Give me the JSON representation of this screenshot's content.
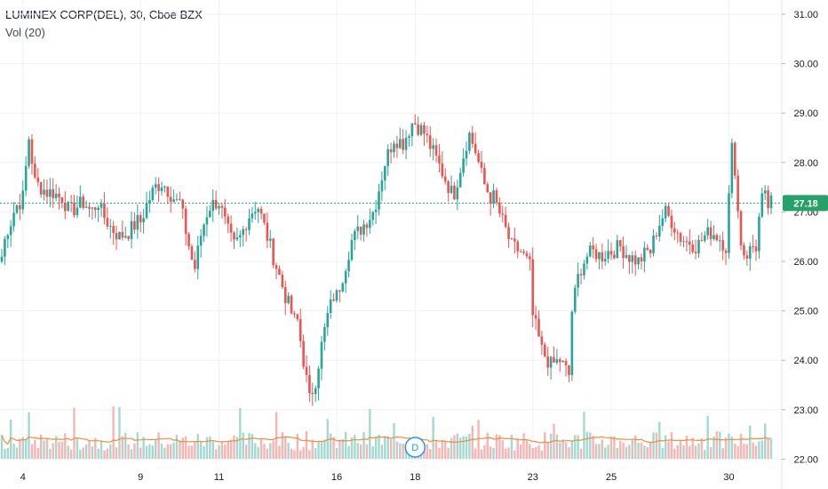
{
  "legend": {
    "symbol": "LUMINEX CORP(DEL), 30, Cboe BZX",
    "volume": "Vol (20)"
  },
  "colors": {
    "up": "#26a69a",
    "down": "#ef5350",
    "up_light": "#a5d8d0",
    "down_light": "#f5b5b3",
    "vol_ma": "#f28c38",
    "grid": "#eef0f3",
    "last_price": "#26a269",
    "marker": "#2196f3"
  },
  "last_price_label": "27.18",
  "marker_label": "D",
  "chart_data": {
    "type": "candlestick",
    "title": "LUMINEX CORP(DEL), 30, Cboe BZX",
    "y_ticks": [
      "22.00",
      "23.00",
      "24.00",
      "25.00",
      "26.00",
      "27.00",
      "28.00",
      "29.00",
      "30.00",
      "31.00"
    ],
    "ylim": [
      21.8,
      31.2
    ],
    "x_ticks": [
      "4",
      "9",
      "11",
      "16",
      "18",
      "23",
      "25",
      "30"
    ],
    "last_price": 27.18,
    "grid": true,
    "volume_indicator": "Vol (20)",
    "segments": [
      {
        "day": "3",
        "bars": 7,
        "points": [
          26.1,
          26.6,
          26.8,
          27.1,
          27.2
        ]
      },
      {
        "day": "4",
        "bars": 13,
        "points": [
          27.3,
          28.5,
          27.6,
          27.5,
          27.4,
          27.4,
          27.3
        ]
      },
      {
        "day": "5",
        "bars": 13,
        "points": [
          27.3,
          27.0,
          27.1,
          27.2,
          27.0,
          27.2
        ]
      },
      {
        "day": "8",
        "bars": 13,
        "points": [
          27.0,
          26.7,
          26.5,
          26.6,
          26.8
        ]
      },
      {
        "day": "9",
        "bars": 13,
        "points": [
          26.8,
          27.2,
          27.5,
          27.6,
          27.4,
          27.2
        ]
      },
      {
        "day": "10",
        "bars": 13,
        "points": [
          27.2,
          26.5,
          25.8,
          26.6,
          27.1,
          27.2
        ]
      },
      {
        "day": "11",
        "bars": 13,
        "points": [
          27.2,
          26.7,
          26.3,
          26.5,
          26.9,
          27.1
        ]
      },
      {
        "day": "12",
        "bars": 13,
        "points": [
          27.1,
          26.5,
          25.9,
          25.3,
          24.8
        ]
      },
      {
        "day": "15",
        "bars": 13,
        "points": [
          24.8,
          24.0,
          23.2,
          23.6,
          24.3,
          24.9,
          25.3
        ]
      },
      {
        "day": "16",
        "bars": 13,
        "points": [
          25.3,
          25.8,
          26.4,
          26.6,
          26.8,
          27.0
        ]
      },
      {
        "day": "17",
        "bars": 13,
        "points": [
          27.2,
          28.0,
          28.5,
          28.4,
          28.8
        ]
      },
      {
        "day": "18",
        "bars": 13,
        "points": [
          28.8,
          28.6,
          28.2,
          27.8,
          27.4
        ]
      },
      {
        "day": "19",
        "bars": 13,
        "points": [
          27.4,
          28.0,
          28.6,
          28.2,
          27.6,
          27.3
        ]
      },
      {
        "day": "22",
        "bars": 13,
        "points": [
          27.3,
          26.8,
          26.3,
          26.2,
          25.9
        ]
      },
      {
        "day": "23",
        "bars": 13,
        "points": [
          24.9,
          24.2,
          23.9,
          24.0,
          23.7
        ]
      },
      {
        "day": "24",
        "bars": 13,
        "points": [
          25.0,
          25.8,
          26.1,
          26.2,
          26.1,
          26.2
        ]
      },
      {
        "day": "25",
        "bars": 13,
        "points": [
          26.2,
          26.3,
          26.1,
          26.0,
          26.2
        ]
      },
      {
        "day": "26",
        "bars": 13,
        "points": [
          26.2,
          26.7,
          27.0,
          26.8,
          26.5,
          26.4
        ]
      },
      {
        "day": "29",
        "bars": 13,
        "points": [
          26.4,
          26.3,
          26.5,
          26.6,
          26.5,
          26.3
        ]
      },
      {
        "day": "30",
        "bars": 9,
        "points": [
          27.3,
          28.6,
          27.2,
          26.4,
          26.1,
          26.2,
          26.3
        ]
      },
      {
        "day": "31",
        "bars": 6,
        "points": [
          26.3,
          27.0,
          27.4,
          27.1,
          27.18
        ]
      }
    ]
  }
}
